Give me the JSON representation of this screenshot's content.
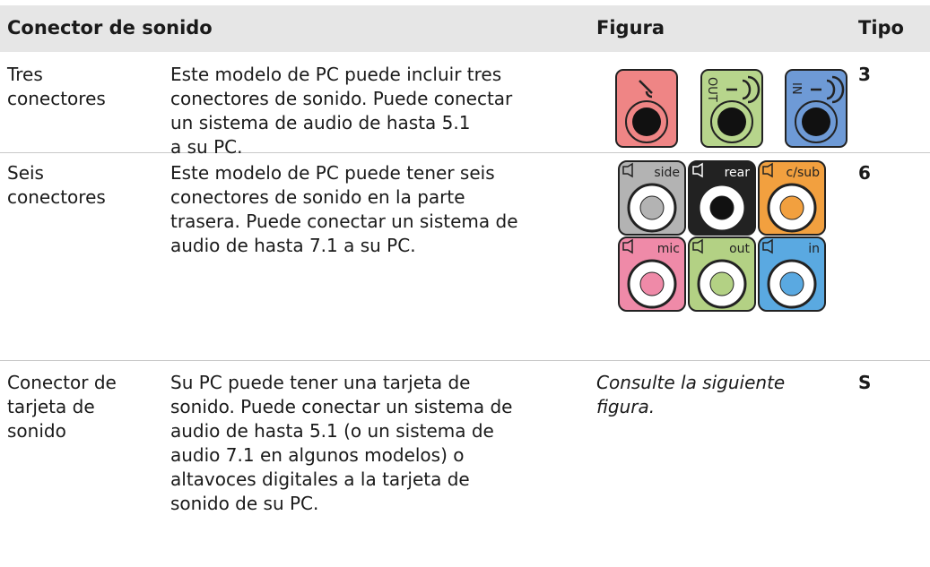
{
  "table": {
    "header": [
      "Conector de sonido",
      "Figura",
      "Tipo"
    ],
    "rows": [
      {
        "connector": [
          "Tres",
          "conectores"
        ],
        "description": [
          "Este modelo de PC puede incluir tres",
          "conectores de sonido. Puede conectar",
          "un sistema de audio de hasta 5.1",
          "a su PC."
        ],
        "figure": {
          "labels": [
            "OUT",
            "IN"
          ]
        },
        "type": "3"
      },
      {
        "connector": [
          "Seis",
          "conectores"
        ],
        "description": [
          "Este modelo de PC puede tener seis",
          "conectores de sonido en la parte",
          "trasera. Puede conectar un sistema de",
          "audio de hasta 7.1 a su PC."
        ],
        "figure": {
          "labels": [
            "side",
            "rear",
            "c/sub",
            "mic",
            "out",
            "in"
          ]
        },
        "type": "6"
      },
      {
        "connector": [
          "Conector de",
          "tarjeta de",
          "sonido"
        ],
        "description": [
          "Su PC puede tener una tarjeta de",
          "sonido. Puede conectar un sistema de",
          "audio de hasta 5.1 (o un sistema de",
          "audio 7.1 en algunos modelos) o",
          "altavoces digitales a la tarjeta de",
          "sonido de su PC."
        ],
        "figure": {
          "text": [
            "Consulte la siguiente",
            "figura."
          ]
        },
        "type": "S"
      }
    ]
  }
}
